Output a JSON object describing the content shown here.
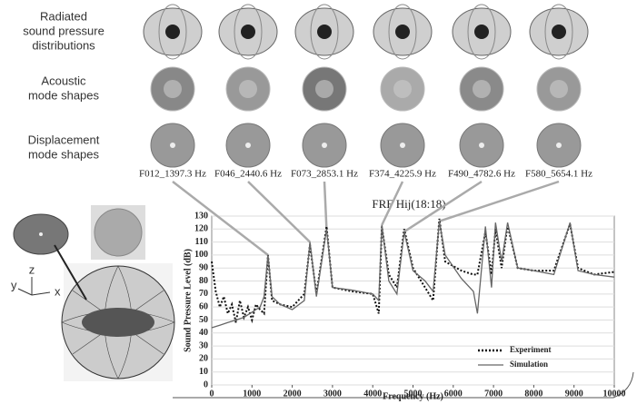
{
  "figure": {
    "row_labels": [
      [
        "Radiated",
        "sound pressure",
        "distributions"
      ],
      [
        "Acoustic",
        "mode shapes"
      ],
      [
        "Displacement",
        "mode shapes"
      ]
    ],
    "modes": [
      "F012_1397.3 Hz",
      "F046_2440.6 Hz",
      "F073_2853.1 Hz",
      "F374_4225.9 Hz",
      "F490_4782.6 Hz",
      "F580_5654.1 Hz"
    ],
    "axes_labels": [
      "z",
      "y",
      "x"
    ]
  },
  "chart_data": {
    "type": "line",
    "title": "FRF Hij(18:18)",
    "xlabel": "Frequency (Hz)",
    "ylabel": "Sound Pressure Level (dB)",
    "x": [
      0,
      100,
      200,
      300,
      400,
      500,
      600,
      700,
      800,
      900,
      1000,
      1100,
      1200,
      1300,
      1397,
      1500,
      1700,
      2000,
      2300,
      2440,
      2600,
      2853,
      3000,
      3500,
      4000,
      4150,
      4225,
      4400,
      4600,
      4782,
      5000,
      5300,
      5500,
      5654,
      5800,
      6200,
      6500,
      6600,
      6800,
      6950,
      7050,
      7200,
      7350,
      7600,
      8000,
      8500,
      8900,
      9100,
      9500,
      10000
    ],
    "series": [
      {
        "name": "Experiment",
        "color": "#111111",
        "dashed": true,
        "values": [
          95,
          72,
          60,
          68,
          55,
          62,
          48,
          65,
          52,
          60,
          50,
          62,
          58,
          55,
          100,
          65,
          62,
          60,
          70,
          108,
          70,
          122,
          75,
          72,
          70,
          55,
          122,
          85,
          75,
          120,
          90,
          75,
          65,
          128,
          95,
          88,
          85,
          85,
          118,
          85,
          120,
          90,
          123,
          90,
          88,
          88,
          124,
          90,
          85,
          87
        ]
      },
      {
        "name": "Simulation",
        "color": "#666666",
        "dashed": false,
        "values": [
          44,
          45,
          46,
          47,
          48,
          49,
          50,
          51,
          52,
          54,
          56,
          58,
          60,
          68,
          100,
          68,
          62,
          58,
          65,
          110,
          68,
          120,
          75,
          73,
          70,
          65,
          123,
          80,
          70,
          118,
          88,
          80,
          72,
          126,
          100,
          82,
          72,
          55,
          122,
          75,
          125,
          95,
          125,
          90,
          88,
          85,
          125,
          88,
          85,
          83
        ]
      }
    ],
    "xlim": [
      0,
      10000
    ],
    "xticks": [
      0,
      1000,
      2000,
      3000,
      4000,
      5000,
      6000,
      7000,
      8000,
      9000,
      10000
    ],
    "ylim": [
      0,
      130
    ],
    "yticks": [
      0,
      10,
      20,
      30,
      40,
      50,
      60,
      70,
      80,
      90,
      100,
      110,
      120,
      130
    ],
    "grid": true,
    "legend": "lower right"
  }
}
